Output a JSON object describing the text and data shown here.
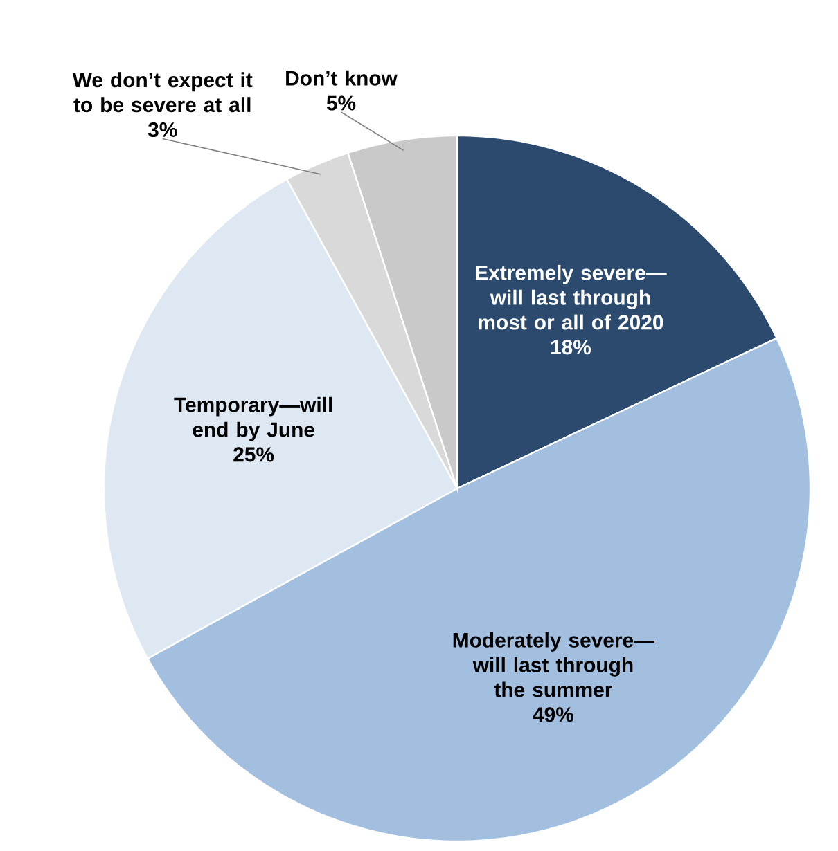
{
  "chart_data": {
    "type": "pie",
    "categories": [
      "Extremely severe—will last through most or all of 2020",
      "Moderately severe—will last through the summer",
      "Temporary—will end by June",
      "We don’t expect it to be severe at all",
      "Don’t know"
    ],
    "values": [
      18,
      49,
      25,
      3,
      5
    ],
    "colors": [
      "#2c4a6e",
      "#a3bfdf",
      "#dde8f3",
      "#d9d9d9",
      "#c9c9c9"
    ],
    "value_labels": [
      "18%",
      "49%",
      "25%",
      "3%",
      "5%"
    ]
  }
}
